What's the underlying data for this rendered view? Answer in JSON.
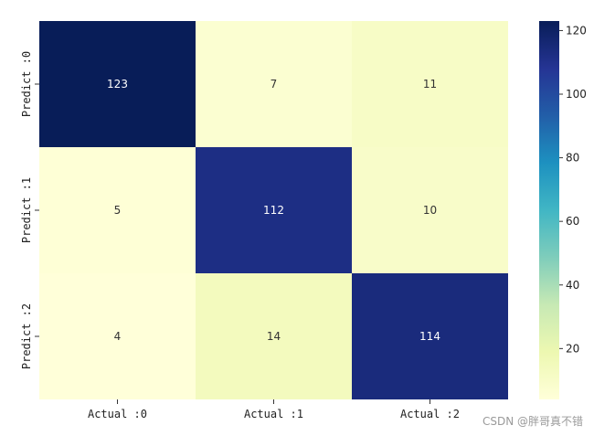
{
  "chart_data": {
    "type": "heatmap",
    "rows": [
      "Predict :0",
      "Predict :1",
      "Predict :2"
    ],
    "columns": [
      "Actual :0",
      "Actual :1",
      "Actual :2"
    ],
    "values": [
      [
        123,
        7,
        11
      ],
      [
        5,
        112,
        10
      ],
      [
        4,
        14,
        114
      ]
    ],
    "colormap": "YlGnBu",
    "colorbar": {
      "min": 4,
      "max": 123,
      "ticks": [
        20,
        40,
        60,
        80,
        100,
        120
      ]
    },
    "annotations": true
  },
  "watermark": "CSDN @胖哥真不错"
}
